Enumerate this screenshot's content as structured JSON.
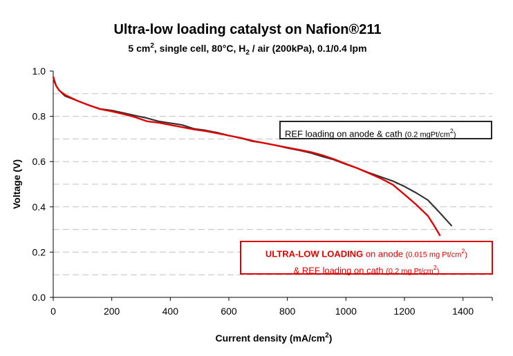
{
  "chart_data": {
    "type": "line",
    "title": "Ultra-low loading catalyst on Nafion®211",
    "subtitle_parts": {
      "a": "5 cm",
      "a_sup": "2",
      "b": ", single cell, 80°C, H",
      "b_sub": "2",
      "c": " / air (200kPa), 0.1/0.4 lpm"
    },
    "xlabel": "Current density (mA/cm",
    "xlabel_sup": "2",
    "xlabel_end": ")",
    "ylabel": "Voltage (V)",
    "xlim": [
      0,
      1500
    ],
    "ylim": [
      0.0,
      1.0
    ],
    "x_ticks": [
      "0",
      "200",
      "400",
      "600",
      "800",
      "1000",
      "1200",
      "1400"
    ],
    "y_ticks": [
      "0.0",
      "0.2",
      "0.4",
      "0.6",
      "0.8",
      "1.0"
    ],
    "grid": "horizontal dashed",
    "series": [
      {
        "id": "ref",
        "color": "#333333",
        "x": [
          0,
          5,
          10,
          20,
          40,
          80,
          120,
          160,
          200,
          240,
          280,
          320,
          360,
          400,
          440,
          480,
          520,
          560,
          600,
          640,
          680,
          720,
          760,
          800,
          840,
          880,
          920,
          960,
          1000,
          1040,
          1080,
          1120,
          1160,
          1200,
          1240,
          1280,
          1320,
          1362
        ],
        "y": [
          0.975,
          0.955,
          0.935,
          0.915,
          0.89,
          0.87,
          0.85,
          0.833,
          0.826,
          0.815,
          0.803,
          0.792,
          0.778,
          0.77,
          0.762,
          0.745,
          0.738,
          0.728,
          0.715,
          0.704,
          0.69,
          0.682,
          0.672,
          0.66,
          0.65,
          0.638,
          0.622,
          0.608,
          0.588,
          0.57,
          0.55,
          0.532,
          0.514,
          0.49,
          0.462,
          0.43,
          0.375,
          0.315
        ]
      },
      {
        "id": "ultra",
        "color": "#e00000",
        "x": [
          0,
          5,
          10,
          20,
          40,
          80,
          120,
          160,
          200,
          240,
          280,
          320,
          360,
          400,
          440,
          480,
          520,
          560,
          600,
          640,
          680,
          720,
          760,
          800,
          840,
          880,
          920,
          960,
          1000,
          1040,
          1080,
          1120,
          1160,
          1200,
          1240,
          1280,
          1300,
          1322
        ],
        "y": [
          0.975,
          0.95,
          0.935,
          0.915,
          0.895,
          0.87,
          0.85,
          0.832,
          0.822,
          0.81,
          0.796,
          0.778,
          0.772,
          0.762,
          0.752,
          0.742,
          0.735,
          0.725,
          0.715,
          0.705,
          0.692,
          0.682,
          0.672,
          0.662,
          0.652,
          0.642,
          0.628,
          0.61,
          0.59,
          0.57,
          0.548,
          0.525,
          0.498,
          0.455,
          0.41,
          0.36,
          0.32,
          0.272
        ]
      }
    ],
    "annotations": {
      "ref": {
        "a": "REF loading on anode & cath ",
        "b": "(0.2 mgPt/cm",
        "b_sup": "2",
        "c": ")"
      },
      "ultra": {
        "a": "ULTRA-LOW LOADING",
        "b": " on anode ",
        "c": "(0.015 mg Pt/cm",
        "c_sup": "2",
        "d": ")",
        "e": "& REF loading on cath ",
        "f": "(0.2 mg Pt/cm",
        "f_sup": "2",
        "g": ")"
      }
    }
  }
}
